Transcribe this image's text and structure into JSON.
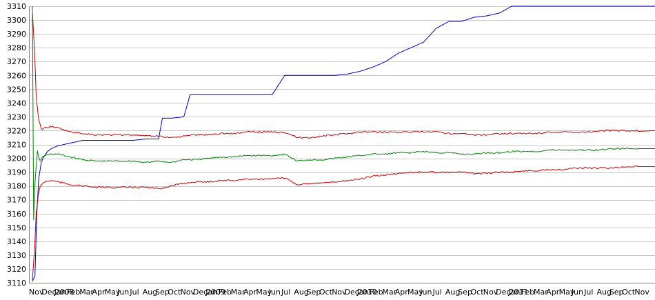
{
  "chart_data": {
    "type": "line",
    "title": "",
    "xlabel": "",
    "ylabel": "",
    "ylim": [
      3110,
      3310
    ],
    "yticks": [
      3110,
      3120,
      3130,
      3140,
      3150,
      3160,
      3170,
      3180,
      3190,
      3200,
      3210,
      3220,
      3230,
      3240,
      3250,
      3260,
      3270,
      3280,
      3290,
      3300,
      3310
    ],
    "grid": true,
    "xticks": [
      "Nov",
      "Dec",
      "Jan",
      "Feb",
      "Mar",
      "Apr",
      "May",
      "Jun",
      "Jul",
      "Aug",
      "Sep",
      "Oct",
      "Nov",
      "Dec",
      "Jan",
      "Feb",
      "Mar",
      "Apr",
      "May",
      "Jun",
      "Jul",
      "Aug",
      "Sep",
      "Oct",
      "Nov",
      "Dec",
      "Jan",
      "Feb",
      "Mar",
      "Apr",
      "May",
      "Jun",
      "Jul",
      "Aug",
      "Sep",
      "Oct",
      "Nov",
      "Dec",
      "Jan",
      "Feb",
      "Mar",
      "Apr",
      "May",
      "Jun",
      "Jul",
      "Aug",
      "Sep",
      "Oct",
      "Nov"
    ],
    "xtick_year_labels": [
      {
        "index": 2,
        "label": "2008"
      },
      {
        "index": 14,
        "label": "2009"
      },
      {
        "index": 26,
        "label": "2010"
      },
      {
        "index": 38,
        "label": "2011"
      }
    ],
    "series": [
      {
        "color": "#0000c0",
        "x": [
          0,
          0.2,
          0.35,
          0.5,
          0.7,
          0.9,
          1.2,
          1.5,
          2,
          3,
          4,
          5,
          6,
          7,
          8,
          9,
          10,
          10.3,
          11,
          12,
          12.5,
          13,
          14,
          15,
          16,
          17,
          18,
          19,
          20,
          21,
          22,
          23,
          24,
          25,
          26,
          27,
          28,
          29,
          30,
          31,
          32,
          33,
          34,
          35,
          36,
          37,
          38,
          39,
          40,
          41,
          42,
          43,
          44,
          45,
          46,
          47,
          48
        ],
        "y": [
          3111,
          3115,
          3160,
          3185,
          3197,
          3201,
          3205,
          3207,
          3209,
          3211,
          3213,
          3213,
          3213,
          3213,
          3213,
          3214,
          3214,
          3229,
          3229,
          3230,
          3246,
          3246,
          3246,
          3246,
          3246,
          3246,
          3246,
          3246,
          3260,
          3260,
          3260,
          3260,
          3260,
          3261,
          3263,
          3266,
          3270,
          3276,
          3280,
          3284,
          3294,
          3299,
          3299,
          3302,
          3303,
          3305,
          3310,
          3310,
          3310,
          3310,
          3310,
          3310,
          3310,
          3310,
          3310,
          3310,
          3310
        ]
      },
      {
        "color": "#008000",
        "x": [
          0,
          0.1,
          0.2,
          0.3,
          0.4,
          0.5,
          0.6,
          0.8,
          1,
          1.5,
          2,
          3,
          4,
          5,
          6,
          7,
          8,
          9,
          10,
          11,
          12,
          13,
          14,
          15,
          16,
          17,
          18,
          19,
          20,
          21,
          22,
          23,
          24,
          25,
          26,
          27,
          28,
          29,
          30,
          31,
          32,
          33,
          34,
          35,
          36,
          37,
          38,
          39,
          40,
          41,
          42,
          43,
          44,
          45,
          46,
          47,
          48
        ],
        "y": [
          3310,
          3155,
          3182,
          3195,
          3205,
          3200,
          3198,
          3201,
          3202,
          3203,
          3203,
          3201,
          3199,
          3198,
          3198,
          3198,
          3198,
          3197,
          3198,
          3197,
          3199,
          3199,
          3200,
          3201,
          3201,
          3202,
          3202,
          3202,
          3203,
          3198,
          3199,
          3199,
          3200,
          3201,
          3202,
          3203,
          3203,
          3204,
          3204,
          3205,
          3204,
          3204,
          3203,
          3203,
          3204,
          3204,
          3205,
          3205,
          3205,
          3206,
          3206,
          3206,
          3206,
          3206,
          3207,
          3207,
          3207
        ]
      },
      {
        "color": "#c00000",
        "x": [
          0,
          0.1,
          0.2,
          0.3,
          0.5,
          0.7,
          1,
          1.5,
          2,
          3,
          4,
          5,
          6,
          7,
          8,
          9,
          10,
          11,
          12,
          13,
          14,
          15,
          16,
          17,
          18,
          19,
          20,
          21,
          22,
          23,
          24,
          25,
          26,
          27,
          28,
          29,
          30,
          31,
          32,
          33,
          34,
          35,
          36,
          37,
          38,
          39,
          40,
          41,
          42,
          43,
          44,
          45,
          46,
          47,
          48
        ],
        "y": [
          3305,
          3290,
          3270,
          3245,
          3228,
          3221,
          3222,
          3223,
          3222,
          3219,
          3218,
          3217,
          3217,
          3217,
          3217,
          3216,
          3216,
          3215,
          3216,
          3217,
          3217,
          3218,
          3218,
          3219,
          3219,
          3219,
          3219,
          3215,
          3215,
          3216,
          3217,
          3218,
          3219,
          3219,
          3219,
          3219,
          3219,
          3219,
          3219,
          3218,
          3218,
          3217,
          3217,
          3218,
          3218,
          3218,
          3218,
          3219,
          3219,
          3219,
          3219,
          3220,
          3220,
          3220,
          3220
        ]
      },
      {
        "color": "#c00000",
        "x": [
          0,
          0.1,
          0.2,
          0.3,
          0.5,
          0.7,
          1,
          1.5,
          2,
          3,
          4,
          5,
          6,
          7,
          8,
          9,
          10,
          11,
          12,
          13,
          14,
          15,
          16,
          17,
          18,
          19,
          20,
          21,
          22,
          23,
          24,
          25,
          26,
          27,
          28,
          29,
          30,
          31,
          32,
          33,
          34,
          35,
          36,
          37,
          38,
          39,
          40,
          41,
          42,
          43,
          44,
          45,
          46,
          47,
          48
        ],
        "y": [
          3112,
          3125,
          3140,
          3160,
          3176,
          3181,
          3183,
          3184,
          3183,
          3181,
          3180,
          3179,
          3179,
          3179,
          3179,
          3179,
          3178,
          3180,
          3182,
          3183,
          3183,
          3184,
          3184,
          3185,
          3185,
          3185,
          3186,
          3181,
          3182,
          3182,
          3183,
          3184,
          3185,
          3187,
          3188,
          3189,
          3190,
          3190,
          3190,
          3190,
          3190,
          3189,
          3189,
          3190,
          3190,
          3191,
          3191,
          3192,
          3192,
          3193,
          3193,
          3193,
          3193,
          3194,
          3194
        ]
      }
    ]
  }
}
